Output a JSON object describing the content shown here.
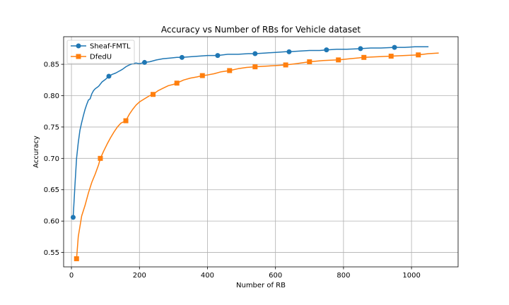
{
  "chart_data": {
    "type": "line",
    "title": "Accuracy vs Number of RBs for Vehicle dataset",
    "xlabel": "Number of RB",
    "ylabel": "Accuracy",
    "xlim": [
      -23,
      1137
    ],
    "ylim": [
      0.527,
      0.894
    ],
    "xticks": [
      0,
      200,
      400,
      600,
      800,
      1000
    ],
    "yticks": [
      0.55,
      0.6,
      0.65,
      0.7,
      0.75,
      0.8,
      0.85
    ],
    "xtick_labels": [
      "0",
      "200",
      "400",
      "600",
      "800",
      "1000"
    ],
    "ytick_labels": [
      "0.55",
      "0.60",
      "0.65",
      "0.70",
      "0.75",
      "0.80",
      "0.85"
    ],
    "grid": true,
    "legend_position": "top-left",
    "series": [
      {
        "name": "Sheaf-FMTL",
        "color": "#1f77b4",
        "marker": "circle",
        "x": [
          5,
          10,
          15,
          20,
          25,
          30,
          35,
          40,
          45,
          50,
          55,
          60,
          65,
          70,
          75,
          80,
          90,
          100,
          110,
          120,
          130,
          140,
          150,
          160,
          170,
          180,
          190,
          200,
          215,
          230,
          250,
          270,
          290,
          310,
          325,
          350,
          375,
          400,
          430,
          460,
          490,
          520,
          540,
          570,
          600,
          630,
          640,
          670,
          700,
          730,
          750,
          780,
          810,
          850,
          880,
          910,
          950,
          980,
          1010,
          1050
        ],
        "y": [
          0.606,
          0.655,
          0.7,
          0.725,
          0.745,
          0.757,
          0.768,
          0.778,
          0.786,
          0.793,
          0.795,
          0.803,
          0.808,
          0.811,
          0.813,
          0.815,
          0.822,
          0.826,
          0.831,
          0.834,
          0.836,
          0.839,
          0.842,
          0.846,
          0.849,
          0.851,
          0.852,
          0.851,
          0.853,
          0.854,
          0.857,
          0.859,
          0.86,
          0.861,
          0.861,
          0.862,
          0.863,
          0.864,
          0.864,
          0.866,
          0.866,
          0.867,
          0.867,
          0.868,
          0.869,
          0.87,
          0.87,
          0.871,
          0.872,
          0.872,
          0.873,
          0.874,
          0.874,
          0.875,
          0.876,
          0.876,
          0.877,
          0.877,
          0.878,
          0.878
        ],
        "marker_x": [
          5,
          110,
          215,
          325,
          430,
          540,
          640,
          750,
          850,
          950
        ],
        "marker_y": [
          0.606,
          0.831,
          0.853,
          0.861,
          0.864,
          0.867,
          0.87,
          0.873,
          0.875,
          0.877
        ]
      },
      {
        "name": "DfedU",
        "color": "#ff7f0e",
        "marker": "square",
        "x": [
          15,
          20,
          30,
          40,
          50,
          60,
          70,
          80,
          85,
          95,
          105,
          115,
          125,
          135,
          145,
          160,
          170,
          180,
          190,
          200,
          215,
          230,
          240,
          255,
          270,
          285,
          300,
          310,
          330,
          350,
          370,
          385,
          400,
          420,
          440,
          465,
          490,
          515,
          540,
          570,
          600,
          630,
          660,
          700,
          740,
          780,
          785,
          820,
          860,
          900,
          940,
          980,
          1020,
          1050,
          1080
        ],
        "y": [
          0.54,
          0.575,
          0.608,
          0.625,
          0.645,
          0.662,
          0.675,
          0.69,
          0.7,
          0.712,
          0.723,
          0.733,
          0.742,
          0.75,
          0.756,
          0.76,
          0.77,
          0.778,
          0.785,
          0.79,
          0.795,
          0.8,
          0.802,
          0.808,
          0.812,
          0.816,
          0.818,
          0.82,
          0.825,
          0.828,
          0.83,
          0.832,
          0.833,
          0.835,
          0.838,
          0.84,
          0.843,
          0.845,
          0.846,
          0.847,
          0.848,
          0.849,
          0.851,
          0.854,
          0.856,
          0.857,
          0.857,
          0.859,
          0.861,
          0.862,
          0.863,
          0.864,
          0.865,
          0.867,
          0.868
        ],
        "marker_x": [
          15,
          85,
          160,
          240,
          310,
          385,
          465,
          540,
          630,
          700,
          785,
          860,
          940,
          1020
        ],
        "marker_y": [
          0.54,
          0.7,
          0.76,
          0.802,
          0.82,
          0.832,
          0.84,
          0.846,
          0.849,
          0.854,
          0.857,
          0.861,
          0.863,
          0.865
        ]
      }
    ]
  }
}
